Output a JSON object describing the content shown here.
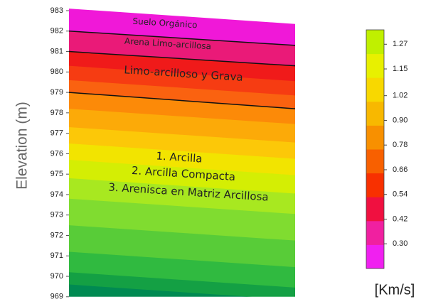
{
  "chart_data": {
    "type": "contour",
    "ylabel": "Elevation (m)",
    "ylim": [
      969,
      983
    ],
    "yticks": [
      969,
      970,
      971,
      972,
      973,
      974,
      975,
      976,
      977,
      978,
      979,
      980,
      981,
      982,
      983
    ],
    "bands": {
      "tops": [
        [
          983.1,
          982.35
        ],
        [
          982,
          981.3
        ],
        [
          981,
          980.3
        ],
        [
          980.3,
          979.55
        ],
        [
          979.6,
          978.85
        ],
        [
          979,
          978.2
        ],
        [
          978.2,
          977.45
        ],
        [
          977.3,
          976.55
        ],
        [
          976.5,
          975.75
        ],
        [
          975.7,
          974.95
        ],
        [
          974.8,
          974.05
        ],
        [
          973.8,
          973.05
        ],
        [
          972.5,
          971.75
        ],
        [
          971.2,
          970.45
        ],
        [
          970.2,
          969.45
        ],
        [
          969.6,
          968.85
        ]
      ],
      "colors": [
        "#f018d8",
        "#ea1a78",
        "#f01a1a",
        "#f63c12",
        "#fa6210",
        "#fc8a08",
        "#fcaa08",
        "#fcc808",
        "#f2e400",
        "#d4ee04",
        "#a8e820",
        "#80dc30",
        "#58cc38",
        "#30ba40",
        "#14a044",
        "#008a52"
      ]
    },
    "boundaries": [
      [
        982,
        981.3
      ],
      [
        981,
        980.3
      ],
      [
        979,
        978.2
      ]
    ],
    "annotations": [
      "Suelo Orgánico",
      "Arena Limo-arcillosa",
      "Limo-arcilloso y Grava",
      "1.   Arcilla",
      "2.   Arcilla Compacta",
      "3.   Arenisca en Matriz Arcillosa"
    ],
    "colorbar": {
      "label": "[Km/s]",
      "clim": [
        0.18,
        1.34
      ],
      "ticks": [
        1.27,
        1.15,
        1.02,
        {
          "value": 0.9,
          "label": "0.90"
        },
        0.78,
        0.66,
        0.54,
        0.42,
        {
          "value": 0.3,
          "label": "0.30"
        }
      ],
      "colors": [
        "#f020f0",
        "#f020a0",
        "#f01040",
        "#f83000",
        "#f86000",
        "#f89000",
        "#f8b800",
        "#f8d800",
        "#e8f000",
        "#c0f000"
      ]
    }
  }
}
